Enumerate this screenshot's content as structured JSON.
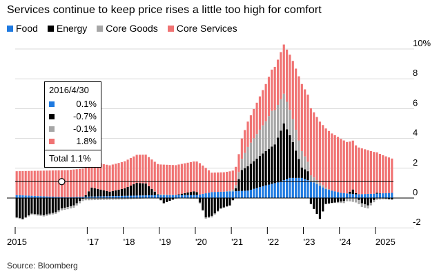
{
  "title": "Services continue to keep price rises a little too high for comfort",
  "legend": [
    {
      "label": "Food",
      "color": "#1f7ae0"
    },
    {
      "label": "Energy",
      "color": "#000000"
    },
    {
      "label": "Core Goods",
      "color": "#a6a6a6"
    },
    {
      "label": "Core Services",
      "color": "#f07373"
    }
  ],
  "source": "Source: Bloomberg",
  "tooltip": {
    "date": "2016/4/30",
    "rows": [
      {
        "value": "0.1%",
        "color": "#1f7ae0"
      },
      {
        "value": "-0.7%",
        "color": "#000000"
      },
      {
        "value": "-0.1%",
        "color": "#a6a6a6"
      },
      {
        "value": "1.8%",
        "color": "#f07373"
      }
    ],
    "total": "Total  1.1%"
  },
  "chart_data": {
    "type": "bar",
    "stacked": true,
    "title": "Services continue to keep price rises a little too high for comfort",
    "xlabel": "",
    "ylabel": "",
    "ylim": [
      -3,
      10
    ],
    "y_ticks": [
      "10%",
      "8",
      "6",
      "4",
      "2",
      "0",
      "-2"
    ],
    "y_tick_values": [
      10,
      8,
      6,
      4,
      2,
      0,
      -2
    ],
    "x_ticks": [
      "2015",
      "'17",
      "'18",
      "'19",
      "'20",
      "'21",
      "'22",
      "'23",
      "'24",
      "2025"
    ],
    "x_tick_years": [
      2015,
      2017,
      2018,
      2019,
      2020,
      2021,
      2022,
      2023,
      2024,
      2025
    ],
    "x_range": [
      "2015-01",
      "2025-06"
    ],
    "reference_line": 1.1,
    "highlight_point": {
      "date": "2016-04",
      "value": 1.1
    },
    "grid": "horizontal",
    "legend_position": "top-left",
    "series": [
      {
        "name": "Food",
        "color": "#1f7ae0",
        "anchors": [
          [
            "2015-01",
            0.2
          ],
          [
            "2015-12",
            0.1
          ],
          [
            "2016-06",
            0.05
          ],
          [
            "2017-01",
            0.1
          ],
          [
            "2018-01",
            0.15
          ],
          [
            "2019-01",
            0.2
          ],
          [
            "2020-01",
            0.2
          ],
          [
            "2020-06",
            0.4
          ],
          [
            "2021-01",
            0.45
          ],
          [
            "2021-06",
            0.5
          ],
          [
            "2021-12",
            0.85
          ],
          [
            "2022-04",
            1.05
          ],
          [
            "2022-08",
            1.35
          ],
          [
            "2022-12",
            1.35
          ],
          [
            "2023-04",
            1.05
          ],
          [
            "2023-08",
            0.6
          ],
          [
            "2024-01",
            0.35
          ],
          [
            "2024-06",
            0.25
          ],
          [
            "2025-01",
            0.3
          ],
          [
            "2025-06",
            0.35
          ]
        ]
      },
      {
        "name": "Energy",
        "color": "#000000",
        "anchors": [
          [
            "2015-01",
            -1.3
          ],
          [
            "2015-03",
            -1.4
          ],
          [
            "2015-06",
            -1.05
          ],
          [
            "2015-10",
            -1.15
          ],
          [
            "2016-02",
            -0.95
          ],
          [
            "2016-04",
            -0.7
          ],
          [
            "2016-08",
            -0.5
          ],
          [
            "2016-12",
            0.1
          ],
          [
            "2017-02",
            0.6
          ],
          [
            "2017-08",
            0.3
          ],
          [
            "2018-01",
            0.5
          ],
          [
            "2018-05",
            0.85
          ],
          [
            "2018-08",
            0.8
          ],
          [
            "2018-12",
            0.05
          ],
          [
            "2019-02",
            -0.35
          ],
          [
            "2019-07",
            0.05
          ],
          [
            "2019-12",
            0.25
          ],
          [
            "2020-01",
            0.2
          ],
          [
            "2020-04",
            -1.3
          ],
          [
            "2020-06",
            -1.2
          ],
          [
            "2020-09",
            -0.7
          ],
          [
            "2020-12",
            -0.5
          ],
          [
            "2021-02",
            0.2
          ],
          [
            "2021-04",
            1.4
          ],
          [
            "2021-11",
            2.2
          ],
          [
            "2022-03",
            2.6
          ],
          [
            "2022-06",
            3.8
          ],
          [
            "2022-09",
            2.4
          ],
          [
            "2022-12",
            0.7
          ],
          [
            "2023-02",
            0.6
          ],
          [
            "2023-03",
            -0.4
          ],
          [
            "2023-06",
            -1.4
          ],
          [
            "2023-08",
            -0.4
          ],
          [
            "2023-11",
            -0.3
          ],
          [
            "2024-02",
            -0.2
          ],
          [
            "2024-05",
            0.3
          ],
          [
            "2024-08",
            -0.35
          ],
          [
            "2024-10",
            -0.5
          ],
          [
            "2025-01",
            0.05
          ],
          [
            "2025-06",
            -0.1
          ]
        ]
      },
      {
        "name": "Core Goods",
        "color": "#a6a6a6",
        "anchors": [
          [
            "2015-01",
            -0.05
          ],
          [
            "2016-01",
            -0.1
          ],
          [
            "2016-06",
            -0.15
          ],
          [
            "2017-01",
            -0.15
          ],
          [
            "2017-12",
            -0.1
          ],
          [
            "2018-06",
            -0.05
          ],
          [
            "2019-01",
            0.05
          ],
          [
            "2019-12",
            -0.05
          ],
          [
            "2020-06",
            -0.1
          ],
          [
            "2020-12",
            0.05
          ],
          [
            "2021-02",
            0.2
          ],
          [
            "2021-06",
            1.3
          ],
          [
            "2021-12",
            2.0
          ],
          [
            "2022-02",
            2.4
          ],
          [
            "2022-06",
            2.0
          ],
          [
            "2022-12",
            1.1
          ],
          [
            "2023-03",
            0.4
          ],
          [
            "2023-06",
            0.2
          ],
          [
            "2023-10",
            0.0
          ],
          [
            "2024-01",
            -0.1
          ],
          [
            "2024-06",
            -0.3
          ],
          [
            "2024-12",
            -0.15
          ],
          [
            "2025-06",
            0.0
          ]
        ]
      },
      {
        "name": "Core Services",
        "color": "#f07373",
        "anchors": [
          [
            "2015-01",
            1.6
          ],
          [
            "2016-04",
            1.8
          ],
          [
            "2016-12",
            1.9
          ],
          [
            "2017-06",
            1.75
          ],
          [
            "2017-12",
            1.8
          ],
          [
            "2018-06",
            1.9
          ],
          [
            "2018-12",
            2.0
          ],
          [
            "2019-06",
            2.0
          ],
          [
            "2019-12",
            2.0
          ],
          [
            "2020-02",
            2.1
          ],
          [
            "2020-06",
            1.3
          ],
          [
            "2020-12",
            1.3
          ],
          [
            "2021-03",
            1.2
          ],
          [
            "2021-06",
            1.7
          ],
          [
            "2021-12",
            2.5
          ],
          [
            "2022-06",
            3.3
          ],
          [
            "2022-12",
            4.5
          ],
          [
            "2023-03",
            4.5
          ],
          [
            "2023-06",
            4.1
          ],
          [
            "2023-12",
            3.7
          ],
          [
            "2024-06",
            3.2
          ],
          [
            "2024-12",
            2.8
          ],
          [
            "2025-06",
            2.3
          ]
        ]
      }
    ]
  }
}
